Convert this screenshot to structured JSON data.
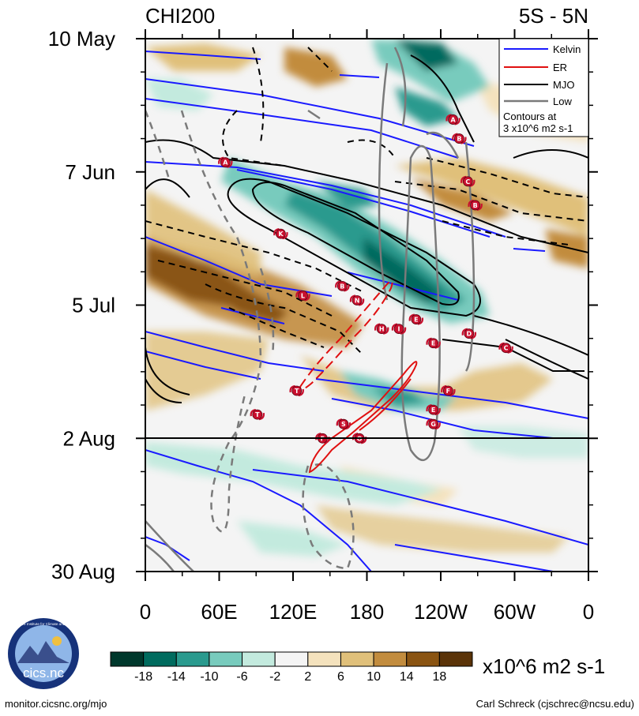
{
  "colors": {
    "kelvin": "#1a1aff",
    "er": "#e01010",
    "mjo": "#000000",
    "low": "#7a7a7a",
    "storm": "#c8102e",
    "scale": [
      "#00382c",
      "#006b5e",
      "#2a9a8e",
      "#78cbbd",
      "#c3eade",
      "#f4f4f4",
      "#f4e2bd",
      "#e0c07a",
      "#c28c3e",
      "#8a5412",
      "#5a3308"
    ]
  },
  "chart_data": {
    "type": "heatmap",
    "title": "CHI200",
    "lat_band": "5S - 5N",
    "x_axis": {
      "ticks": [
        "0",
        "60E",
        "120E",
        "180",
        "120W",
        "60W",
        "0"
      ],
      "values": [
        0,
        60,
        120,
        180,
        240,
        300,
        360
      ],
      "range": [
        0,
        360
      ]
    },
    "y_axis": {
      "ticks": [
        "10 May",
        "7 Jun",
        "5 Jul",
        "2 Aug",
        "30 Aug"
      ],
      "values": [
        0,
        28,
        56,
        84,
        112
      ],
      "range_days": [
        0,
        112
      ],
      "reverse": true
    },
    "forecast_start_day": 84,
    "legend": {
      "entries": [
        {
          "label": "Kelvin",
          "color_key": "kelvin"
        },
        {
          "label": "ER",
          "color_key": "er"
        },
        {
          "label": "MJO",
          "color_key": "mjo"
        },
        {
          "label": "Low",
          "color_key": "low"
        }
      ],
      "note_line1": "Contours at",
      "note_line2": "3 x10^6 m2 s-1",
      "placement": "top-right"
    },
    "colorbar": {
      "labels": [
        "-18",
        "-14",
        "-10",
        "-6",
        "-2",
        "2",
        "6",
        "10",
        "14",
        "18"
      ],
      "units": "x10^6 m2 s-1"
    },
    "storms": [
      {
        "letter": "A",
        "lon": 65,
        "day": 26
      },
      {
        "letter": "A",
        "lon": 250,
        "day": 17
      },
      {
        "letter": "B",
        "lon": 255,
        "day": 21
      },
      {
        "letter": "C",
        "lon": 262,
        "day": 30
      },
      {
        "letter": "B",
        "lon": 268,
        "day": 35
      },
      {
        "letter": "K",
        "lon": 110,
        "day": 41
      },
      {
        "letter": "B",
        "lon": 160,
        "day": 52
      },
      {
        "letter": "L",
        "lon": 128,
        "day": 54
      },
      {
        "letter": "N",
        "lon": 172,
        "day": 55
      },
      {
        "letter": "E",
        "lon": 220,
        "day": 59
      },
      {
        "letter": "H",
        "lon": 192,
        "day": 61
      },
      {
        "letter": "I",
        "lon": 206,
        "day": 61
      },
      {
        "letter": "D",
        "lon": 263,
        "day": 62
      },
      {
        "letter": "E",
        "lon": 234,
        "day": 64
      },
      {
        "letter": "C",
        "lon": 293,
        "day": 65
      },
      {
        "letter": "T",
        "lon": 123,
        "day": 74
      },
      {
        "letter": "F",
        "lon": 246,
        "day": 74
      },
      {
        "letter": "E",
        "lon": 234,
        "day": 78
      },
      {
        "letter": "S",
        "lon": 161,
        "day": 81
      },
      {
        "letter": "G",
        "lon": 234,
        "day": 81
      },
      {
        "letter": "T",
        "lon": 91,
        "day": 79
      },
      {
        "letter": "F",
        "lon": 144,
        "day": 84
      },
      {
        "letter": "O",
        "lon": 174,
        "day": 84
      }
    ]
  },
  "footer": {
    "left": "monitor.cicsnc.org/mjo",
    "right": "Carl Schreck (cjschrec@ncsu.edu)"
  },
  "logo": {
    "text": "cics.nc",
    "ring_text": "Cooperative Institute for Climate and Satellites"
  }
}
